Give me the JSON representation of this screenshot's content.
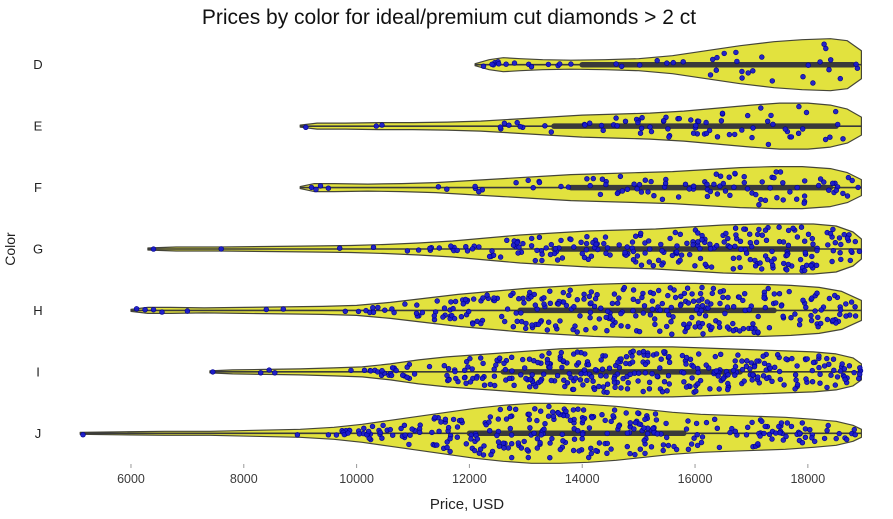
{
  "title": "Prices by color for ideal/premium cut diamonds > 2 ct",
  "chart_data": {
    "type": "violin",
    "title": "Prices by color for ideal/premium cut diamonds > 2 ct",
    "xlabel": "Price, USD",
    "ylabel": "Color",
    "categories": [
      "D",
      "E",
      "F",
      "G",
      "H",
      "I",
      "J"
    ],
    "xlim": [
      4600,
      19350
    ],
    "xticks": [
      6000,
      8000,
      10000,
      12000,
      14000,
      16000,
      18000
    ],
    "grid": false,
    "legend": "none",
    "colors": {
      "violin_fill": "#e0e034",
      "violin_edge": "#454538",
      "inner_line": "#3a3a3a",
      "point_fill": "#1a1acd",
      "point_edge": "#00008b",
      "tick_text": "#3b3b3b",
      "label_text": "#222222"
    },
    "series": [
      {
        "label": "D",
        "range": [
          12100,
          18950
        ],
        "box": [
          14000,
          18800
        ],
        "n_points": 34,
        "profile": [
          [
            12100,
            1
          ],
          [
            12350,
            5
          ],
          [
            12600,
            7
          ],
          [
            12900,
            6
          ],
          [
            13300,
            5
          ],
          [
            13800,
            4.5
          ],
          [
            14400,
            5
          ],
          [
            15000,
            6
          ],
          [
            15600,
            9
          ],
          [
            16200,
            14
          ],
          [
            16800,
            19
          ],
          [
            17400,
            23
          ],
          [
            17900,
            25
          ],
          [
            18400,
            26
          ],
          [
            18700,
            24
          ],
          [
            18950,
            14
          ]
        ],
        "extra_points": [
          12250,
          12400,
          12520,
          12650,
          12800,
          13100,
          13400,
          13600,
          13800,
          14600,
          15500
        ]
      },
      {
        "label": "E",
        "range": [
          9000,
          18950
        ],
        "box": [
          13500,
          18500
        ],
        "n_points": 70,
        "profile": [
          [
            9000,
            1
          ],
          [
            9300,
            3
          ],
          [
            9800,
            3
          ],
          [
            10400,
            3.5
          ],
          [
            11000,
            3.5
          ],
          [
            11600,
            4
          ],
          [
            12200,
            5
          ],
          [
            12800,
            7
          ],
          [
            13400,
            9
          ],
          [
            14000,
            11
          ],
          [
            14600,
            12
          ],
          [
            15200,
            13
          ],
          [
            15800,
            15
          ],
          [
            16400,
            18
          ],
          [
            17000,
            21
          ],
          [
            17500,
            23
          ],
          [
            18000,
            23
          ],
          [
            18400,
            21
          ],
          [
            18700,
            17
          ],
          [
            18950,
            9
          ]
        ],
        "extra_points": [
          9100,
          10350,
          10450,
          12550,
          12700,
          12900
        ]
      },
      {
        "label": "F",
        "range": [
          9000,
          18950
        ],
        "box": [
          13800,
          18400
        ],
        "n_points": 95,
        "profile": [
          [
            9000,
            1
          ],
          [
            9250,
            4
          ],
          [
            9600,
            4
          ],
          [
            10200,
            3.5
          ],
          [
            10800,
            4
          ],
          [
            11400,
            5
          ],
          [
            12000,
            7
          ],
          [
            12600,
            9
          ],
          [
            13200,
            11
          ],
          [
            13800,
            13
          ],
          [
            14400,
            14
          ],
          [
            15000,
            15
          ],
          [
            15600,
            16
          ],
          [
            16200,
            18
          ],
          [
            16800,
            20
          ],
          [
            17400,
            21
          ],
          [
            17900,
            21
          ],
          [
            18400,
            19
          ],
          [
            18700,
            15
          ],
          [
            18950,
            8
          ]
        ],
        "extra_points": [
          9200,
          9280,
          9360,
          9500,
          11600,
          12100
        ]
      },
      {
        "label": "G",
        "range": [
          6300,
          18950
        ],
        "box": [
          13500,
          18100
        ],
        "n_points": 230,
        "profile": [
          [
            6300,
            1
          ],
          [
            6800,
            2
          ],
          [
            7600,
            2
          ],
          [
            8400,
            2.5
          ],
          [
            9200,
            3
          ],
          [
            9900,
            3.5
          ],
          [
            10500,
            4.5
          ],
          [
            11100,
            6
          ],
          [
            11700,
            8
          ],
          [
            12300,
            11
          ],
          [
            12900,
            14
          ],
          [
            13500,
            16
          ],
          [
            14100,
            18
          ],
          [
            14700,
            19
          ],
          [
            15300,
            20
          ],
          [
            15900,
            22
          ],
          [
            16500,
            24
          ],
          [
            17100,
            25
          ],
          [
            17600,
            25
          ],
          [
            18100,
            25
          ],
          [
            18500,
            23
          ],
          [
            18800,
            17
          ],
          [
            18950,
            10
          ]
        ],
        "extra_points": [
          6400,
          7600,
          9700,
          10300,
          10900,
          11100,
          11300
        ]
      },
      {
        "label": "H",
        "range": [
          6000,
          18950
        ],
        "box": [
          12900,
          17400
        ],
        "n_points": 300,
        "profile": [
          [
            6000,
            1
          ],
          [
            6300,
            3
          ],
          [
            6700,
            3
          ],
          [
            7300,
            2.5
          ],
          [
            8000,
            3
          ],
          [
            8700,
            3.5
          ],
          [
            9400,
            4
          ],
          [
            10000,
            5
          ],
          [
            10600,
            8
          ],
          [
            11200,
            12
          ],
          [
            11800,
            16
          ],
          [
            12400,
            19
          ],
          [
            13000,
            22
          ],
          [
            13600,
            24
          ],
          [
            14200,
            26
          ],
          [
            14800,
            27
          ],
          [
            15400,
            27
          ],
          [
            16000,
            27
          ],
          [
            16600,
            26
          ],
          [
            17200,
            26
          ],
          [
            17700,
            25
          ],
          [
            18200,
            23
          ],
          [
            18600,
            19
          ],
          [
            18950,
            10
          ]
        ],
        "extra_points": [
          6100,
          6250,
          6400,
          6550,
          7000,
          8400,
          8700,
          9800,
          10300,
          10500
        ]
      },
      {
        "label": "I",
        "range": [
          7400,
          18950
        ],
        "box": [
          12600,
          16800
        ],
        "n_points": 340,
        "profile": [
          [
            7400,
            1
          ],
          [
            7800,
            2
          ],
          [
            8400,
            2.5
          ],
          [
            9000,
            3
          ],
          [
            9600,
            4
          ],
          [
            10100,
            5
          ],
          [
            10600,
            8
          ],
          [
            11100,
            12
          ],
          [
            11600,
            15
          ],
          [
            12100,
            17
          ],
          [
            12600,
            19
          ],
          [
            13100,
            21
          ],
          [
            13600,
            23
          ],
          [
            14100,
            24
          ],
          [
            14600,
            25
          ],
          [
            15100,
            25
          ],
          [
            15600,
            25
          ],
          [
            16100,
            24
          ],
          [
            16600,
            23
          ],
          [
            17100,
            22
          ],
          [
            17600,
            21
          ],
          [
            18100,
            20
          ],
          [
            18500,
            18
          ],
          [
            18800,
            14
          ],
          [
            18950,
            8
          ]
        ],
        "extra_points": [
          7450,
          8300,
          8450,
          8550,
          9900,
          10250,
          10450
        ]
      },
      {
        "label": "J",
        "range": [
          5100,
          18950
        ],
        "box": [
          12000,
          15800
        ],
        "n_points": 310,
        "profile": [
          [
            5100,
            1
          ],
          [
            5800,
            1.5
          ],
          [
            6600,
            2
          ],
          [
            7400,
            2
          ],
          [
            8200,
            3
          ],
          [
            9000,
            4
          ],
          [
            9600,
            6
          ],
          [
            10100,
            9
          ],
          [
            10600,
            13
          ],
          [
            11100,
            17
          ],
          [
            11600,
            21
          ],
          [
            12100,
            25
          ],
          [
            12600,
            28
          ],
          [
            13100,
            30
          ],
          [
            13600,
            30
          ],
          [
            14100,
            29
          ],
          [
            14600,
            27
          ],
          [
            15100,
            24
          ],
          [
            15600,
            21
          ],
          [
            16100,
            19
          ],
          [
            16600,
            18
          ],
          [
            17100,
            17
          ],
          [
            17600,
            16
          ],
          [
            18100,
            14
          ],
          [
            18500,
            12
          ],
          [
            18800,
            8
          ],
          [
            18950,
            4
          ]
        ],
        "extra_points": [
          5150,
          8950,
          9500,
          9850,
          10050
        ]
      }
    ]
  }
}
